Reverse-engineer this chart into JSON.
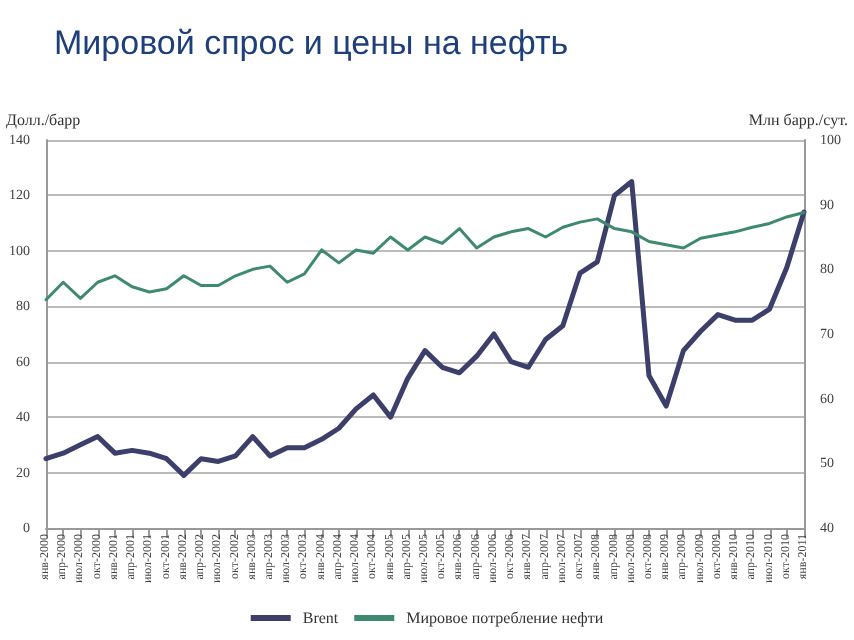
{
  "chart_data": {
    "type": "line",
    "title": "Мировой спрос и цены на нефть",
    "ylabel": "Долл./барр",
    "y2label": "Млн барр./сут.",
    "categories": [
      "янв-2000",
      "апр-2000",
      "июл-2000",
      "окт-2000",
      "янв-2001",
      "апр-2001",
      "июл-2001",
      "окт-2001",
      "янв-2002",
      "апр-2002",
      "июл-2002",
      "окт-2002",
      "янв-2003",
      "апр-2003",
      "июл-2003",
      "окт-2003",
      "янв-2004",
      "апр-2004",
      "июл-2004",
      "окт-2004",
      "янв-2005",
      "апр-2005",
      "июл-2005",
      "окт-2005",
      "янв-2006",
      "апр-2006",
      "июл-2006",
      "окт-2006",
      "янв-2007",
      "апр-2007",
      "июл-2007",
      "окт-2007",
      "янв-2008",
      "апр-2008",
      "июл-2008",
      "окт-2008",
      "янв-2009",
      "апр-2009",
      "июл-2009",
      "окт-2009",
      "янв-2010",
      "апр-2010",
      "июл-2010",
      "окт-2010",
      "янв-2011"
    ],
    "series": [
      {
        "name": "Brent",
        "color": "#3d3f6b",
        "values": [
          25,
          27,
          30,
          33,
          27,
          28,
          27,
          25,
          19,
          25,
          24,
          26,
          33,
          26,
          29,
          29,
          32,
          36,
          43,
          48,
          40,
          54,
          64,
          58,
          56,
          62,
          70,
          60,
          58,
          68,
          73,
          92,
          96,
          120,
          125,
          55,
          44,
          64,
          71,
          77,
          75,
          75,
          79,
          94,
          114
        ]
      },
      {
        "name": "Мировое потребление нефти",
        "color": "#3f8a6e",
        "axis": "y2",
        "values": [
          75.3,
          78,
          75.5,
          78,
          79,
          77.3,
          76.5,
          77,
          79,
          77.5,
          77.5,
          79,
          80,
          80.5,
          78,
          79.3,
          83,
          81,
          83,
          82.5,
          85,
          83,
          85,
          84,
          86.3,
          83.3,
          85,
          85.8,
          86.3,
          85,
          86.5,
          87.3,
          87.8,
          86.3,
          85.8,
          84.3,
          83.8,
          83.3,
          84.8,
          85.3,
          85.8,
          86.5,
          87.1,
          88.1,
          88.8
        ]
      }
    ],
    "ylim": [
      0,
      140
    ],
    "yticks": [
      0,
      20,
      40,
      60,
      80,
      100,
      120,
      140
    ],
    "y2lim": [
      40,
      100
    ],
    "y2ticks": [
      40,
      50,
      60,
      70,
      80,
      90,
      100
    ],
    "grid": "y",
    "legend": "bottom",
    "marker": "none",
    "line_style": "solid"
  }
}
